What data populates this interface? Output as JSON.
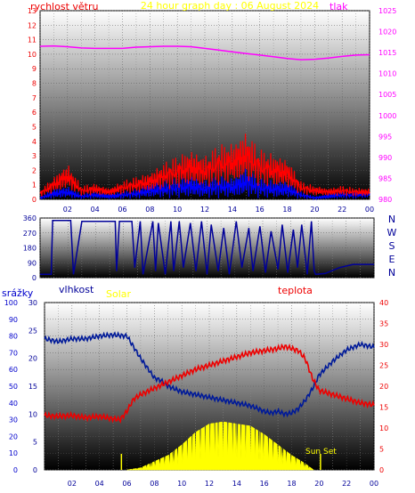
{
  "header": {
    "title": "24 hour graph day : 06 August 2024",
    "wind_label": "rychlost větru",
    "pressure_label": "tlak"
  },
  "lower_labels": {
    "rain": "srážky",
    "humidity": "vlhkost",
    "solar": "Solar",
    "temperature": "teplota",
    "sunset": "Sun Set"
  },
  "colors": {
    "wind": "#ff0000",
    "gust": "#0000ff",
    "pressure": "#ff00ff",
    "direction": "#000099",
    "humidity": "#001a99",
    "temperature": "#ee0000",
    "solar": "#ffff00",
    "title": "#ffff00",
    "background_top": "#ffffff",
    "background_bottom": "#000000"
  },
  "chart_data": [
    {
      "type": "line",
      "x_ticks": [
        "02",
        "04",
        "06",
        "08",
        "10",
        "12",
        "14",
        "16",
        "18",
        "20",
        "22",
        "00"
      ],
      "x_range": [
        0,
        24
      ],
      "left_axis": {
        "label": "rychlost větru",
        "range": [
          0,
          13
        ],
        "ticks": [
          "0",
          "1",
          "2",
          "3",
          "4",
          "5",
          "6",
          "7",
          "8",
          "9",
          "10",
          "11",
          "12",
          "13"
        ]
      },
      "right_axis": {
        "label": "tlak",
        "range": [
          980,
          1025
        ],
        "ticks": [
          "980",
          "985",
          "990",
          "995",
          "1000",
          "1005",
          "1010",
          "1015",
          "1020",
          "1025"
        ]
      },
      "series": [
        {
          "name": "tlak",
          "axis": "right",
          "x": [
            0,
            1,
            2,
            3,
            4,
            5,
            6,
            7,
            8,
            9,
            10,
            11,
            12,
            13,
            14,
            15,
            16,
            17,
            18,
            19,
            20,
            21,
            22,
            23,
            24
          ],
          "values": [
            1016.5,
            1016.6,
            1016.4,
            1016.1,
            1016.0,
            1016.0,
            1016.0,
            1016.3,
            1016.4,
            1016.5,
            1016.5,
            1016.4,
            1016.0,
            1015.6,
            1015.2,
            1014.8,
            1014.4,
            1014.0,
            1013.6,
            1013.3,
            1013.4,
            1013.7,
            1014.1,
            1014.4,
            1014.5
          ]
        },
        {
          "axis": "left",
          "x": [
            0,
            1,
            2,
            3,
            4,
            5,
            6,
            7,
            8,
            9,
            10,
            11,
            12,
            13,
            14,
            15,
            16,
            17,
            18,
            19,
            20,
            21,
            22,
            23,
            24
          ],
          "values": [
            0.4,
            1.0,
            1.6,
            0.6,
            0.7,
            0.5,
            0.8,
            1.0,
            1.2,
            1.6,
            1.9,
            2.2,
            1.9,
            2.4,
            2.5,
            3.0,
            2.2,
            2.0,
            1.8,
            0.8,
            0.6,
            0.5,
            0.6,
            0.5,
            0.5
          ]
        },
        {
          "axis": "left",
          "x": [
            0,
            1,
            2,
            3,
            4,
            5,
            6,
            7,
            8,
            9,
            10,
            11,
            12,
            13,
            14,
            15,
            16,
            17,
            18,
            19,
            20,
            21,
            22,
            23,
            24
          ],
          "values": [
            0.1,
            0.4,
            0.5,
            0.2,
            0.3,
            0.2,
            0.3,
            0.4,
            0.6,
            0.7,
            0.8,
            0.9,
            0.7,
            0.9,
            0.8,
            1.2,
            0.8,
            0.7,
            0.7,
            0.3,
            0.1,
            0.2,
            0.3,
            0.3,
            0.4
          ]
        }
      ]
    },
    {
      "type": "line",
      "x_range": [
        0,
        24
      ],
      "left_axis": {
        "range": [
          0,
          360
        ],
        "ticks": [
          "0",
          "90",
          "180",
          "270",
          "360"
        ]
      },
      "right_labels": [
        "N",
        "W",
        "S",
        "E",
        "N"
      ],
      "series": [
        {
          "axis": "left",
          "x": [
            0,
            0.8,
            0.9,
            1.5,
            2.2,
            2.4,
            3.0,
            4.0,
            5.0,
            5.4,
            5.5,
            5.7,
            5.9,
            6.6,
            6.8,
            7.2,
            7.4,
            8.1,
            8.3,
            8.5,
            9.0,
            9.4,
            9.6,
            10.0,
            10.3,
            10.8,
            11.2,
            11.6,
            12.0,
            12.3,
            12.8,
            13.2,
            13.6,
            14.1,
            14.5,
            15.0,
            15.3,
            15.8,
            16.2,
            16.6,
            17.1,
            17.4,
            17.8,
            18.2,
            18.5,
            18.8,
            19.2,
            19.5,
            19.7,
            19.8,
            20.5,
            21.5,
            22.5,
            24
          ],
          "values": [
            20,
            20,
            345,
            345,
            345,
            20,
            340,
            340,
            340,
            340,
            40,
            340,
            340,
            340,
            60,
            340,
            20,
            340,
            40,
            330,
            20,
            340,
            40,
            340,
            60,
            330,
            40,
            340,
            20,
            320,
            40,
            300,
            20,
            340,
            60,
            300,
            40,
            310,
            30,
            280,
            50,
            320,
            30,
            290,
            60,
            320,
            20,
            340,
            40,
            20,
            25,
            60,
            80,
            80
          ]
        }
      ]
    },
    {
      "type": "line",
      "x_ticks": [
        "02",
        "04",
        "06",
        "08",
        "10",
        "12",
        "14",
        "16",
        "18",
        "20",
        "22",
        "00"
      ],
      "x_range": [
        0,
        24
      ],
      "axes": [
        {
          "label": "srážky",
          "range": [
            0,
            100
          ],
          "ticks": [
            "0",
            "10",
            "20",
            "30",
            "40",
            "50",
            "60",
            "70",
            "80",
            "90",
            "100"
          ]
        },
        {
          "label": "vlhkost",
          "range": [
            0,
            30
          ],
          "ticks": [
            "0",
            "5",
            "10",
            "15",
            "20",
            "25",
            "30"
          ]
        },
        {
          "label": "teplota",
          "range": [
            0,
            40
          ],
          "ticks": [
            "0",
            "5",
            "10",
            "15",
            "20",
            "25",
            "30",
            "35",
            "40"
          ]
        }
      ],
      "series": [
        {
          "axis": "vlhkost",
          "x": [
            0,
            1,
            2,
            3,
            4,
            5,
            6,
            7,
            8,
            8.5,
            9,
            10,
            11,
            12,
            13,
            14,
            15,
            16,
            16.5,
            17,
            17.5,
            18,
            18.5,
            19,
            19.5,
            20,
            21,
            22,
            23,
            24
          ],
          "values": [
            23.5,
            23.0,
            23.5,
            23.5,
            24.0,
            24.2,
            24.0,
            20.0,
            16.5,
            16.0,
            15.0,
            14.0,
            13.5,
            13.0,
            12.5,
            12.0,
            11.5,
            10.5,
            10.2,
            10.5,
            10.0,
            10.2,
            11.0,
            12.5,
            14.5,
            17.0,
            19.5,
            21.5,
            22.5,
            22.0
          ]
        },
        {
          "axis": "teplota",
          "x": [
            0,
            1,
            2,
            3,
            4,
            5,
            5.5,
            6,
            6.5,
            7,
            8,
            9,
            10,
            11,
            12,
            13,
            14,
            15,
            16,
            17,
            17.5,
            18,
            18.5,
            19,
            19.5,
            20,
            21,
            22,
            23,
            24
          ],
          "values": [
            13.0,
            12.8,
            13.0,
            12.5,
            12.8,
            12.2,
            12.0,
            14.0,
            17.0,
            18.0,
            19.5,
            21.0,
            22.5,
            24.0,
            25.0,
            26.0,
            27.0,
            28.0,
            28.5,
            29.0,
            29.5,
            29.0,
            28.5,
            26.5,
            22.0,
            19.0,
            18.0,
            17.0,
            16.0,
            15.5
          ]
        },
        {
          "name": "Solar",
          "axis": "teplota",
          "x": [
            6.0,
            7,
            8,
            9,
            10,
            11,
            12,
            13,
            14,
            15,
            16,
            17,
            18,
            19,
            19.6
          ],
          "values": [
            0,
            0.5,
            2.0,
            3.5,
            6.0,
            9.0,
            11.0,
            11.5,
            11.0,
            10.5,
            8.5,
            6.0,
            3.5,
            1.5,
            0
          ]
        }
      ]
    }
  ]
}
